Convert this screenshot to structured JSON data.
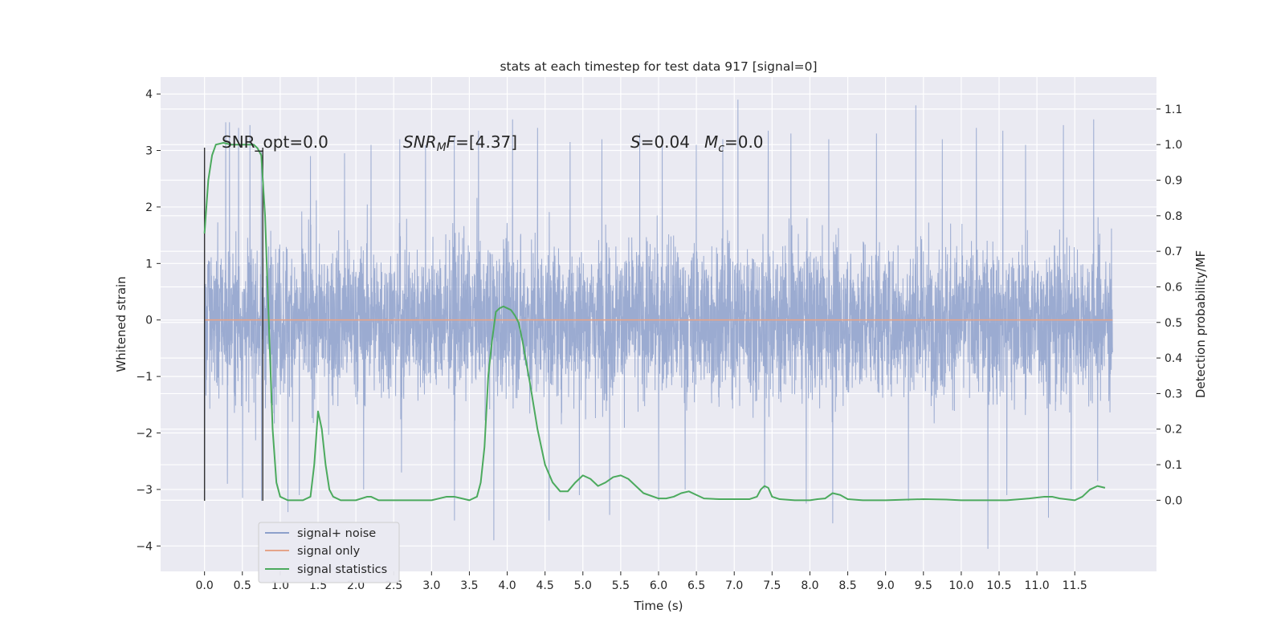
{
  "chart_data": {
    "type": "line",
    "title": "stats at each timestep for test data 917 [signal=0]",
    "xlabel": "Time (s)",
    "ylabel_left": "Whitened strain",
    "ylabel_right": "Detection probability/MF",
    "xlim": [
      -0.58,
      12.58
    ],
    "ylim_left": [
      -4.45,
      4.3
    ],
    "ylim_right": [
      -0.2,
      1.19
    ],
    "x_ticks": [
      "0.0",
      "0.5",
      "1.0",
      "1.5",
      "2.0",
      "2.5",
      "3.0",
      "3.5",
      "4.0",
      "4.5",
      "5.0",
      "5.5",
      "6.0",
      "6.5",
      "7.0",
      "7.5",
      "8.0",
      "8.5",
      "9.0",
      "9.5",
      "10.0",
      "10.5",
      "11.0",
      "11.5"
    ],
    "y_left_ticks": [
      4,
      3,
      2,
      1,
      0,
      -1,
      -2,
      -3,
      -4
    ],
    "y_left_tick_labels": [
      "4",
      "3",
      "2",
      "1",
      "0",
      "−1",
      "−2",
      "−3",
      "−4"
    ],
    "y_right_ticks": [
      1.1,
      1.0,
      0.9,
      0.8,
      0.7,
      0.6,
      0.5,
      0.4,
      0.3,
      0.2,
      0.1,
      0.0
    ],
    "y_right_tick_labels": [
      "1.1",
      "1.0",
      "0.9",
      "0.8",
      "0.7",
      "0.6",
      "0.5",
      "0.4",
      "0.3",
      "0.2",
      "0.1",
      "0.0"
    ],
    "grid": true,
    "legend_position": "lower-left",
    "annotations": {
      "snr_opt": "SNR_opt=0.0",
      "snr_mf_a": "SNR",
      "snr_mf_sub": "M",
      "snr_mf_b": "F",
      "snr_mf_c": "=[4.37]",
      "s_label": "S",
      "s_value": "=0.04",
      "mc_label": "M",
      "mc_sub": "c",
      "mc_value": "=0.0"
    },
    "series": [
      {
        "name": "signal+ noise",
        "color": "#8da0cb",
        "axis": "left",
        "x_range": [
          0.0,
          12.0
        ],
        "envelope_note_value": "dense noise between approx -4.0 and 3.9",
        "peaks_high": [
          [
            0.0,
            3.05
          ],
          [
            0.28,
            3.5
          ],
          [
            0.33,
            3.5
          ],
          [
            0.45,
            3.4
          ],
          [
            0.6,
            3.45
          ],
          [
            0.75,
            3.0
          ],
          [
            1.4,
            2.9
          ],
          [
            1.85,
            2.95
          ],
          [
            2.2,
            3.1
          ],
          [
            2.58,
            3.2
          ],
          [
            2.92,
            3.1
          ],
          [
            3.3,
            3.25
          ],
          [
            3.62,
            3.35
          ],
          [
            4.07,
            3.55
          ],
          [
            4.4,
            3.4
          ],
          [
            4.83,
            3.15
          ],
          [
            5.25,
            3.2
          ],
          [
            5.75,
            3.3
          ],
          [
            6.05,
            3.25
          ],
          [
            6.5,
            3.1
          ],
          [
            6.85,
            3.2
          ],
          [
            7.05,
            3.9
          ],
          [
            7.45,
            3.35
          ],
          [
            7.75,
            3.3
          ],
          [
            8.25,
            3.2
          ],
          [
            8.88,
            3.3
          ],
          [
            9.4,
            3.8
          ],
          [
            9.75,
            3.2
          ],
          [
            10.2,
            3.4
          ],
          [
            10.55,
            3.35
          ],
          [
            10.85,
            3.1
          ],
          [
            11.35,
            3.45
          ],
          [
            11.75,
            3.55
          ]
        ],
        "peaks_low": [
          [
            0.0,
            -3.2
          ],
          [
            0.3,
            -2.9
          ],
          [
            0.5,
            -3.15
          ],
          [
            0.75,
            -3.2
          ],
          [
            1.1,
            -3.4
          ],
          [
            1.25,
            -3.1
          ],
          [
            2.1,
            -3.0
          ],
          [
            2.6,
            -2.7
          ],
          [
            3.3,
            -3.55
          ],
          [
            3.82,
            -3.9
          ],
          [
            4.55,
            -3.55
          ],
          [
            4.95,
            -3.1
          ],
          [
            5.35,
            -3.45
          ],
          [
            6.0,
            -3.2
          ],
          [
            6.35,
            -3.0
          ],
          [
            7.4,
            -3.0
          ],
          [
            7.95,
            -3.25
          ],
          [
            8.3,
            -3.6
          ],
          [
            9.3,
            -3.2
          ],
          [
            10.35,
            -4.05
          ],
          [
            10.6,
            -3.1
          ],
          [
            11.15,
            -3.5
          ],
          [
            11.45,
            -3.0
          ],
          [
            11.8,
            -2.85
          ]
        ]
      },
      {
        "name": "signal only",
        "color": "#e5a48a",
        "axis": "left",
        "x": [
          0.0,
          12.0
        ],
        "y": [
          0.0,
          0.0
        ]
      },
      {
        "name": "signal statistics",
        "color": "#4caa5e",
        "axis": "right",
        "x": [
          0.0,
          0.05,
          0.1,
          0.15,
          0.25,
          0.35,
          0.5,
          0.6,
          0.65,
          0.7,
          0.75,
          0.8,
          0.85,
          0.9,
          0.95,
          1.0,
          1.1,
          1.2,
          1.3,
          1.4,
          1.45,
          1.5,
          1.55,
          1.6,
          1.65,
          1.7,
          1.8,
          2.0,
          2.15,
          2.2,
          2.3,
          2.5,
          2.8,
          3.0,
          3.2,
          3.3,
          3.4,
          3.5,
          3.6,
          3.65,
          3.7,
          3.75,
          3.8,
          3.85,
          3.9,
          3.95,
          4.0,
          4.05,
          4.1,
          4.15,
          4.2,
          4.3,
          4.4,
          4.5,
          4.6,
          4.7,
          4.8,
          4.9,
          5.0,
          5.1,
          5.2,
          5.3,
          5.4,
          5.5,
          5.6,
          5.7,
          5.8,
          6.0,
          6.1,
          6.2,
          6.3,
          6.4,
          6.5,
          6.6,
          6.8,
          7.0,
          7.2,
          7.3,
          7.35,
          7.4,
          7.45,
          7.5,
          7.6,
          7.8,
          8.0,
          8.1,
          8.2,
          8.3,
          8.4,
          8.5,
          8.7,
          9.0,
          9.3,
          9.5,
          9.8,
          10.0,
          10.3,
          10.6,
          10.9,
          11.1,
          11.2,
          11.3,
          11.5,
          11.6,
          11.7,
          11.8,
          11.9
        ],
        "y": [
          0.75,
          0.9,
          0.97,
          1.0,
          1.005,
          1.0,
          1.0,
          1.0,
          1.0,
          0.99,
          0.97,
          0.8,
          0.5,
          0.2,
          0.05,
          0.01,
          0.0,
          0.0,
          0.0,
          0.01,
          0.1,
          0.25,
          0.2,
          0.1,
          0.03,
          0.01,
          0.0,
          0.0,
          0.01,
          0.01,
          0.0,
          0.0,
          0.0,
          0.0,
          0.01,
          0.01,
          0.005,
          0.0,
          0.01,
          0.05,
          0.15,
          0.35,
          0.45,
          0.53,
          0.54,
          0.545,
          0.54,
          0.535,
          0.52,
          0.5,
          0.45,
          0.33,
          0.2,
          0.1,
          0.05,
          0.025,
          0.025,
          0.05,
          0.07,
          0.06,
          0.04,
          0.05,
          0.065,
          0.07,
          0.06,
          0.04,
          0.02,
          0.005,
          0.005,
          0.01,
          0.02,
          0.025,
          0.015,
          0.005,
          0.003,
          0.003,
          0.003,
          0.01,
          0.03,
          0.04,
          0.035,
          0.01,
          0.003,
          0.0,
          0.0,
          0.003,
          0.005,
          0.02,
          0.015,
          0.003,
          0.0,
          0.0,
          0.002,
          0.003,
          0.002,
          0.0,
          0.0,
          0.0,
          0.005,
          0.01,
          0.01,
          0.005,
          0.0,
          0.01,
          0.03,
          0.04,
          0.035
        ]
      }
    ],
    "vertical_markers_x": [
      0.0,
      0.77
    ]
  }
}
